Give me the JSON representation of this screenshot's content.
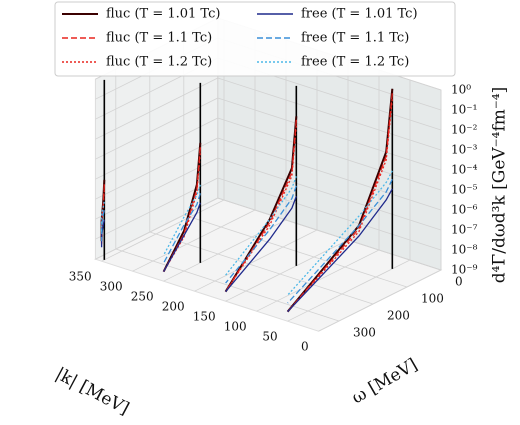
{
  "chart_data": {
    "type": "line3d",
    "x_label": "|k| [MeV]",
    "y_label": "ω [MeV]",
    "z_label": "d⁴Γ/dωd³k [GeV⁻⁴fm⁻⁴]",
    "xlim": [
      0,
      360
    ],
    "xticks": [
      0,
      50,
      100,
      150,
      200,
      250,
      300,
      350
    ],
    "ylim": [
      0,
      360
    ],
    "yticks": [
      0,
      100,
      200,
      300
    ],
    "zlim": [
      1e-09,
      3
    ],
    "zscale": "log",
    "zticks": [
      {
        "value": 1e-09,
        "label": "10⁻⁹"
      },
      {
        "value": 1e-08,
        "label": "10⁻⁸"
      },
      {
        "value": 1e-07,
        "label": "10⁻⁷"
      },
      {
        "value": 1e-06,
        "label": "10⁻⁶"
      },
      {
        "value": 1e-05,
        "label": "10⁻⁵"
      },
      {
        "value": 0.0001,
        "label": "10⁻⁴"
      },
      {
        "value": 0.001,
        "label": "10⁻³"
      },
      {
        "value": 0.01,
        "label": "10⁻²"
      },
      {
        "value": 0.1,
        "label": "10⁻¹"
      },
      {
        "value": 1,
        "label": "10⁰"
      }
    ],
    "grid": true,
    "k": [
      350,
      250,
      150,
      50
    ],
    "omega": [
      [
        352,
        355,
        360,
        360
      ],
      [
        252,
        262,
        300,
        360
      ],
      [
        152,
        165,
        230,
        360
      ],
      [
        52,
        70,
        150,
        360
      ]
    ],
    "series": [
      {
        "name": "fluc (T = 1.01 Tc)",
        "color": "#3b0000",
        "linestyle": "solid",
        "values": [
          [
            1e-05,
            1e-06,
            1e-07,
            1e-08
          ],
          [
            0.001,
            1e-05,
            1e-07,
            3e-09
          ],
          [
            0.03,
            0.0001,
            1e-06,
            3e-09
          ],
          [
            1,
            0.001,
            1e-06,
            3e-09
          ]
        ]
      },
      {
        "name": "fluc (T = 1.1 Tc)",
        "color": "#e8251f",
        "linestyle": "dashed",
        "values": [
          [
            6e-06,
            6e-07,
            7e-08,
            8e-09
          ],
          [
            0.0006,
            6e-06,
            7e-08,
            3e-09
          ],
          [
            0.02,
            6e-05,
            7e-07,
            3e-09
          ],
          [
            0.6,
            0.0006,
            7e-07,
            3e-09
          ]
        ]
      },
      {
        "name": "fluc (T = 1.2 Tc)",
        "color": "#e8251f",
        "linestyle": "dotted",
        "values": [
          [
            3e-06,
            4e-07,
            5e-08,
            6e-09
          ],
          [
            0.0003,
            4e-06,
            5e-08,
            3e-09
          ],
          [
            0.01,
            4e-05,
            5e-07,
            3e-09
          ],
          [
            0.3,
            0.0004,
            5e-07,
            3e-09
          ]
        ]
      },
      {
        "name": "free (T = 1.01 Tc)",
        "color": "#1f2a8c",
        "linestyle": "solid",
        "values": [
          [
            1e-07,
            6e-08,
            2e-08,
            5e-09
          ],
          [
            1e-06,
            4e-07,
            6e-08,
            3e-09
          ],
          [
            3e-06,
            1e-06,
            1e-07,
            3e-09
          ],
          [
            1e-05,
            4e-06,
            3e-07,
            3e-09
          ]
        ]
      },
      {
        "name": "free (T = 1.1 Tc)",
        "color": "#3a8fd8",
        "linestyle": "dashed",
        "values": [
          [
            3e-07,
            2e-07,
            6e-08,
            1e-08
          ],
          [
            3e-06,
            1e-06,
            2e-07,
            8e-09
          ],
          [
            1e-05,
            3e-06,
            3e-07,
            8e-09
          ],
          [
            3e-05,
            1e-05,
            1e-06,
            8e-09
          ]
        ]
      },
      {
        "name": "free (T = 1.2 Tc)",
        "color": "#4db8e8",
        "linestyle": "dotted",
        "values": [
          [
            8e-07,
            5e-07,
            2e-07,
            3e-08
          ],
          [
            8e-06,
            3e-06,
            5e-07,
            2e-08
          ],
          [
            3e-05,
            1e-05,
            1e-06,
            2e-08
          ],
          [
            8e-05,
            3e-05,
            3e-06,
            2e-08
          ]
        ]
      }
    ]
  }
}
